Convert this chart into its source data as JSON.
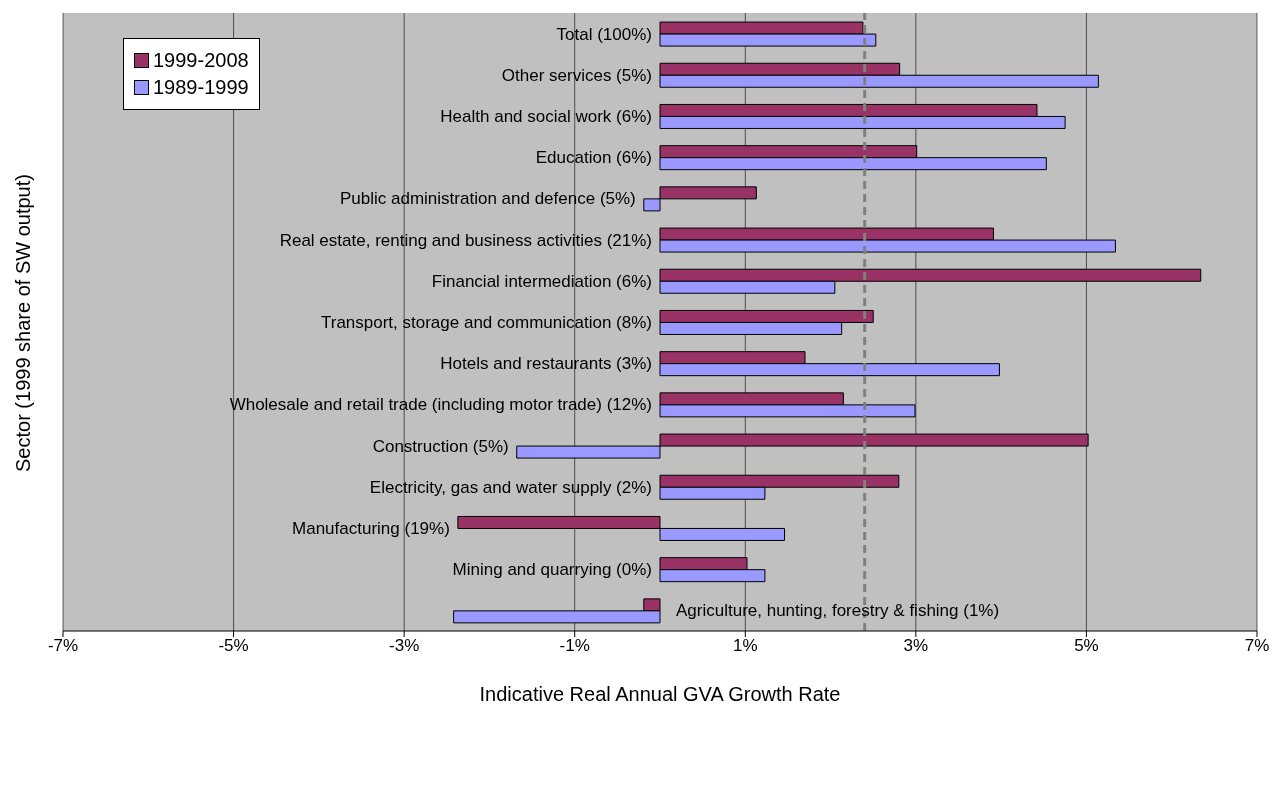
{
  "chart_data": {
    "type": "bar",
    "orientation": "horizontal",
    "xlabel": "Indicative Real Annual GVA Growth Rate",
    "ylabel": "Sector (1999 share of SW output)",
    "categories": [
      "Total (100%)",
      "Other services (5%)",
      "Health and social work (6%)",
      "Education (6%)",
      "Public administration and defence (5%)",
      "Real estate, renting and business activities (21%)",
      "Financial intermediation (6%)",
      "Transport, storage and communication (8%)",
      "Hotels and restaurants (3%)",
      "Wholesale and retail trade (including motor trade) (12%)",
      "Construction (5%)",
      "Electricity, gas and water supply (2%)",
      "Manufacturing (19%)",
      "Mining and quarrying (0%)",
      "Agriculture, hunting, forestry  & fishing (1%)"
    ],
    "series": [
      {
        "name": "1999-2008",
        "color": "#993366",
        "values": [
          2.38,
          2.81,
          4.42,
          3.01,
          1.13,
          3.91,
          6.34,
          2.5,
          1.7,
          2.15,
          5.02,
          2.8,
          -2.37,
          1.02,
          -0.19
        ]
      },
      {
        "name": "1989-1999",
        "color": "#9999ff",
        "values": [
          2.53,
          5.14,
          4.75,
          4.53,
          -0.19,
          5.34,
          2.05,
          2.13,
          3.98,
          2.99,
          -1.68,
          1.23,
          1.46,
          1.23,
          -2.42
        ]
      }
    ],
    "xlim": [
      -7,
      7
    ],
    "xticks": [
      {
        "value": -7,
        "label": "-7%"
      },
      {
        "value": -5,
        "label": "-5%"
      },
      {
        "value": -3,
        "label": "-3%"
      },
      {
        "value": -1,
        "label": "-1%"
      },
      {
        "value": 1,
        "label": "1%"
      },
      {
        "value": 3,
        "label": "3%"
      },
      {
        "value": 5,
        "label": "5%"
      },
      {
        "value": 7,
        "label": "7%"
      }
    ],
    "ref_lines": [
      {
        "axis": "x",
        "value": 2.4,
        "color": "#808080",
        "line_style": "dashed"
      }
    ],
    "grid": "x",
    "legend": "top left"
  }
}
